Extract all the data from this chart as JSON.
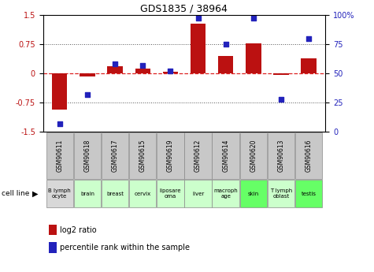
{
  "title": "GDS1835 / 38964",
  "gsm_labels": [
    "GSM90611",
    "GSM90618",
    "GSM90617",
    "GSM90615",
    "GSM90619",
    "GSM90612",
    "GSM90614",
    "GSM90620",
    "GSM90613",
    "GSM90616"
  ],
  "cell_lines": [
    "B lymph\nocyte",
    "brain",
    "breast",
    "cervix",
    "liposare\noma",
    "liver",
    "macroph\nage",
    "skin",
    "T lymph\noblast",
    "testis"
  ],
  "cell_line_colors": [
    "#d8d8d8",
    "#ccffcc",
    "#ccffcc",
    "#ccffcc",
    "#ccffcc",
    "#ccffcc",
    "#ccffcc",
    "#66ff66",
    "#ccffcc",
    "#66ff66"
  ],
  "log2_ratio": [
    -0.93,
    -0.07,
    0.18,
    0.12,
    0.04,
    1.28,
    0.45,
    0.78,
    -0.04,
    0.38
  ],
  "percentile_rank": [
    7,
    32,
    58,
    57,
    52,
    97,
    75,
    97,
    28,
    80
  ],
  "ylim_left": [
    -1.5,
    1.5
  ],
  "ylim_right": [
    0,
    100
  ],
  "yticks_left": [
    -1.5,
    -0.75,
    0,
    0.75,
    1.5
  ],
  "ytick_labels_left": [
    "-1.5",
    "-0.75",
    "0",
    "0.75",
    "1.5"
  ],
  "yticks_right": [
    0,
    25,
    50,
    75,
    100
  ],
  "ytick_labels_right": [
    "0",
    "25",
    "50",
    "75",
    "100%"
  ],
  "bar_color": "#bb1111",
  "dot_color": "#2222bb",
  "zero_line_color": "#dd2222",
  "grid_color": "#555555",
  "gsm_box_color": "#c8c8c8"
}
